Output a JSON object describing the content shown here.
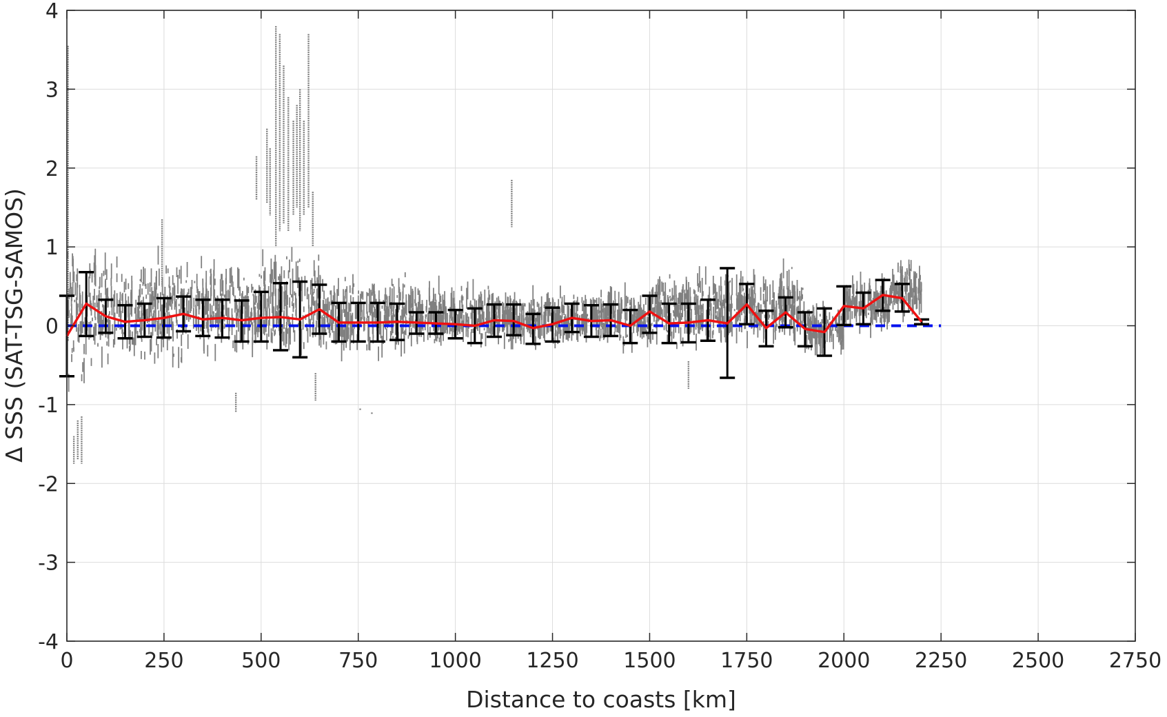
{
  "chart_data": {
    "type": "scatter",
    "title": "",
    "xlabel": "Distance to coasts [km]",
    "ylabel": "Δ SSS (SAT-TSG-SAMOS)",
    "xlim": [
      0,
      2750
    ],
    "ylim": [
      -4,
      4
    ],
    "grid": true,
    "xticks": [
      0,
      250,
      500,
      750,
      1000,
      1250,
      1500,
      1750,
      2000,
      2250,
      2500,
      2750
    ],
    "yticks": [
      -4,
      -3,
      -2,
      -1,
      0,
      1,
      2,
      3,
      4
    ],
    "xtick_labels": [
      "0",
      "250",
      "500",
      "750",
      "1000",
      "1250",
      "1500",
      "1750",
      "2000",
      "2250",
      "2500",
      "2750"
    ],
    "ytick_labels": [
      "-4",
      "-3",
      "-2",
      "-1",
      "0",
      "1",
      "2",
      "3",
      "4"
    ],
    "colors": {
      "scatter": "#808080",
      "mean_line": "#ee1111",
      "error_bars": "#000000",
      "zero_line": "#0011ee",
      "grid": "#dcdcdc",
      "axes": "#262626"
    },
    "scatter_density": [
      {
        "x0": 0,
        "x1": 50,
        "lo": -1.0,
        "hi": 1.2
      },
      {
        "x0": 50,
        "x1": 100,
        "lo": -0.7,
        "hi": 1.2
      },
      {
        "x0": 100,
        "x1": 200,
        "lo": -0.55,
        "hi": 0.9
      },
      {
        "x0": 200,
        "x1": 300,
        "lo": -0.65,
        "hi": 1.05
      },
      {
        "x0": 300,
        "x1": 400,
        "lo": -0.45,
        "hi": 0.9
      },
      {
        "x0": 400,
        "x1": 500,
        "lo": -0.45,
        "hi": 0.8
      },
      {
        "x0": 500,
        "x1": 650,
        "lo": -0.45,
        "hi": 1.0
      },
      {
        "x0": 650,
        "x1": 900,
        "lo": -0.45,
        "hi": 0.75
      },
      {
        "x0": 900,
        "x1": 1100,
        "lo": -0.3,
        "hi": 0.55
      },
      {
        "x0": 1100,
        "x1": 1300,
        "lo": -0.3,
        "hi": 0.45
      },
      {
        "x0": 1300,
        "x1": 1500,
        "lo": -0.3,
        "hi": 0.5
      },
      {
        "x0": 1500,
        "x1": 1700,
        "lo": -0.35,
        "hi": 0.75
      },
      {
        "x0": 1700,
        "x1": 1900,
        "lo": -0.3,
        "hi": 0.8
      },
      {
        "x0": 1900,
        "x1": 2000,
        "lo": -0.4,
        "hi": 0.3
      },
      {
        "x0": 2000,
        "x1": 2120,
        "lo": -0.05,
        "hi": 0.6
      },
      {
        "x0": 2120,
        "x1": 2200,
        "lo": 0.1,
        "hi": 0.85
      }
    ],
    "scatter_features": [
      {
        "x": 3,
        "y_min": -0.2,
        "y_max": 3.55
      },
      {
        "x": 18,
        "y_min": -1.75,
        "y_max": -1.4
      },
      {
        "x": 28,
        "y_min": -1.7,
        "y_max": -1.2
      },
      {
        "x": 38,
        "y_min": -1.75,
        "y_max": -1.15
      },
      {
        "x": 245,
        "y_min": 0.5,
        "y_max": 1.35
      },
      {
        "x": 435,
        "y_min": -1.1,
        "y_max": -0.85
      },
      {
        "x": 488,
        "y_min": 1.6,
        "y_max": 2.15
      },
      {
        "x": 515,
        "y_min": 1.55,
        "y_max": 2.5
      },
      {
        "x": 523,
        "y_min": 1.4,
        "y_max": 2.25
      },
      {
        "x": 538,
        "y_min": 1.0,
        "y_max": 3.8
      },
      {
        "x": 548,
        "y_min": 1.2,
        "y_max": 3.7
      },
      {
        "x": 558,
        "y_min": 1.3,
        "y_max": 3.3
      },
      {
        "x": 570,
        "y_min": 1.2,
        "y_max": 2.9
      },
      {
        "x": 583,
        "y_min": 1.4,
        "y_max": 2.6
      },
      {
        "x": 592,
        "y_min": 1.5,
        "y_max": 2.8
      },
      {
        "x": 600,
        "y_min": 1.2,
        "y_max": 3.0
      },
      {
        "x": 610,
        "y_min": 1.4,
        "y_max": 2.6
      },
      {
        "x": 622,
        "y_min": 1.5,
        "y_max": 3.7
      },
      {
        "x": 633,
        "y_min": 1.0,
        "y_max": 1.7
      },
      {
        "x": 640,
        "y_min": -0.95,
        "y_max": -0.6
      },
      {
        "x": 755,
        "y_min": -1.05,
        "y_max": -1.05
      },
      {
        "x": 785,
        "y_min": -1.1,
        "y_max": -1.1
      },
      {
        "x": 1145,
        "y_min": 1.25,
        "y_max": 1.85
      },
      {
        "x": 1600,
        "y_min": -0.8,
        "y_max": -0.45
      }
    ],
    "mean_series": {
      "x": [
        0,
        50,
        100,
        150,
        200,
        250,
        300,
        350,
        400,
        450,
        500,
        550,
        600,
        650,
        700,
        750,
        800,
        850,
        900,
        950,
        1000,
        1050,
        1100,
        1150,
        1200,
        1250,
        1300,
        1350,
        1400,
        1450,
        1500,
        1550,
        1600,
        1650,
        1700,
        1750,
        1800,
        1850,
        1900,
        1950,
        2000,
        2050,
        2100,
        2150,
        2200
      ],
      "y": [
        -0.13,
        0.28,
        0.12,
        0.05,
        0.07,
        0.1,
        0.15,
        0.08,
        0.1,
        0.07,
        0.1,
        0.11,
        0.08,
        0.21,
        0.04,
        0.04,
        0.04,
        0.05,
        0.04,
        0.03,
        0.02,
        0.0,
        0.07,
        0.06,
        -0.03,
        0.02,
        0.1,
        0.06,
        0.07,
        0.0,
        0.18,
        0.03,
        0.04,
        0.07,
        0.03,
        0.27,
        -0.03,
        0.17,
        -0.04,
        -0.08,
        0.25,
        0.22,
        0.39,
        0.35,
        0.05
      ]
    },
    "error_bars": {
      "x": [
        0,
        50,
        100,
        150,
        200,
        250,
        300,
        350,
        400,
        450,
        500,
        550,
        600,
        650,
        700,
        750,
        800,
        850,
        900,
        950,
        1000,
        1050,
        1100,
        1150,
        1200,
        1250,
        1300,
        1350,
        1400,
        1450,
        1500,
        1550,
        1600,
        1650,
        1700,
        1750,
        1800,
        1850,
        1900,
        1950,
        2000,
        2050,
        2100,
        2150,
        2200
      ],
      "low": [
        -0.64,
        -0.13,
        -0.09,
        -0.16,
        -0.14,
        -0.15,
        -0.07,
        -0.13,
        -0.15,
        -0.2,
        -0.2,
        -0.31,
        -0.4,
        -0.1,
        -0.2,
        -0.2,
        -0.2,
        -0.18,
        -0.1,
        -0.1,
        -0.16,
        -0.22,
        -0.14,
        -0.12,
        -0.23,
        -0.2,
        -0.08,
        -0.14,
        -0.13,
        -0.22,
        -0.09,
        -0.22,
        -0.21,
        -0.19,
        -0.66,
        0.02,
        -0.26,
        -0.02,
        -0.26,
        -0.38,
        0.01,
        0.02,
        0.19,
        0.18,
        0.02
      ],
      "high": [
        0.38,
        0.68,
        0.33,
        0.26,
        0.28,
        0.35,
        0.37,
        0.33,
        0.33,
        0.32,
        0.43,
        0.54,
        0.56,
        0.52,
        0.29,
        0.29,
        0.29,
        0.28,
        0.17,
        0.17,
        0.2,
        0.22,
        0.27,
        0.27,
        0.15,
        0.23,
        0.28,
        0.26,
        0.27,
        0.2,
        0.38,
        0.28,
        0.28,
        0.33,
        0.73,
        0.53,
        0.19,
        0.36,
        0.17,
        0.22,
        0.5,
        0.42,
        0.58,
        0.53,
        0.08
      ]
    },
    "reference_line": {
      "y": 0,
      "x_range": [
        0,
        2250
      ],
      "style": "dashed"
    }
  }
}
